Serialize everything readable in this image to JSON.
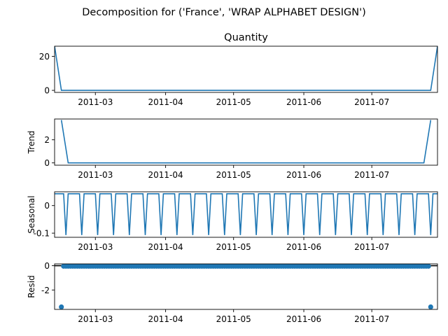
{
  "figure": {
    "suptitle": "Decomposition for ('France', 'WRAP ALPHABET DESIGN')"
  },
  "colors": {
    "series": "#1f77b4",
    "axis": "#000000",
    "background": "#ffffff"
  },
  "chart_data": [
    {
      "type": "line",
      "title": "Quantity",
      "ylabel": "",
      "xlabel": "",
      "x_range": [
        "2011-02-11",
        "2011-07-30"
      ],
      "xticks": [
        "2011-03",
        "2011-04",
        "2011-05",
        "2011-06",
        "2011-07"
      ],
      "ylim": [
        -1.2,
        26
      ],
      "yticks": [
        0,
        20
      ],
      "x": [
        "2011-02-11",
        "2011-02-14",
        "2011-07-27",
        "2011-07-30"
      ],
      "values": [
        26,
        0,
        0,
        26
      ]
    },
    {
      "type": "line",
      "title": "",
      "ylabel": "Trend",
      "xlabel": "",
      "x_range": [
        "2011-02-11",
        "2011-07-30"
      ],
      "xticks": [
        "2011-03",
        "2011-04",
        "2011-05",
        "2011-06",
        "2011-07"
      ],
      "ylim": [
        -0.2,
        3.8
      ],
      "yticks": [
        0,
        2
      ],
      "x": [
        "2011-02-14",
        "2011-02-17",
        "2011-07-24",
        "2011-07-27"
      ],
      "values": [
        3.71,
        0,
        0,
        3.71
      ]
    },
    {
      "type": "line",
      "title": "",
      "ylabel": "Seasonal",
      "xlabel": "",
      "x_range": [
        "2011-02-11",
        "2011-07-30"
      ],
      "xticks": [
        "2011-03",
        "2011-04",
        "2011-05",
        "2011-06",
        "2011-07"
      ],
      "ylim": [
        -0.115,
        0.05
      ],
      "yticks": [
        0.0,
        -0.1
      ],
      "period_days": 7,
      "pattern": [
        0.043,
        0.043,
        0.043,
        0.043,
        0.043,
        -0.107,
        0.043
      ],
      "start": "2011-02-11",
      "end": "2011-07-30"
    },
    {
      "type": "scatter",
      "title": "",
      "ylabel": "Resid",
      "xlabel": "",
      "x_range": [
        "2011-02-11",
        "2011-07-30"
      ],
      "xticks": [
        "2011-03",
        "2011-04",
        "2011-05",
        "2011-06",
        "2011-07"
      ],
      "ylim": [
        -3.6,
        0.15
      ],
      "yticks": [
        0,
        -2
      ],
      "zero_line": true,
      "points_default": -0.04,
      "start": "2011-02-14",
      "end": "2011-07-27",
      "outliers": [
        {
          "x": "2011-02-14",
          "y": -3.4
        },
        {
          "x": "2011-07-27",
          "y": -3.4
        }
      ]
    }
  ]
}
